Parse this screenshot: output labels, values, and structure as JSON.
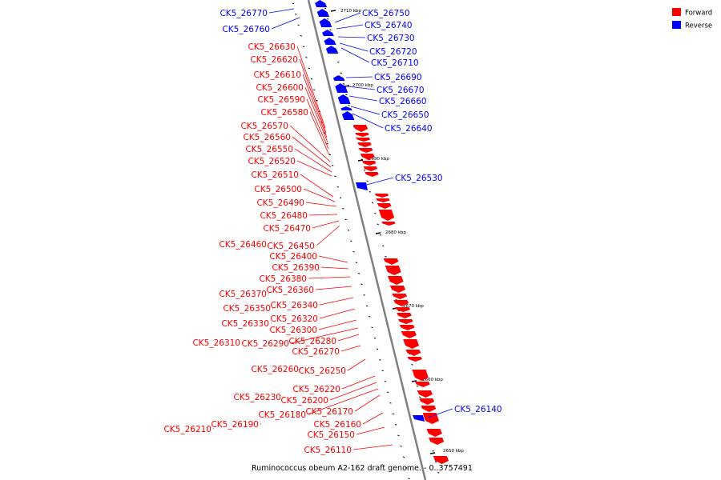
{
  "caption": "Ruminococcus obeum A2-162 draft genome. - 0..3757491",
  "colors": {
    "forward": "#ff0000",
    "reverse": "#0000ff",
    "backbone": "#808080",
    "tick": "#000000"
  },
  "legend": [
    {
      "label": "Forward",
      "strand": "forward"
    },
    {
      "label": "Reverse",
      "strand": "reverse"
    }
  ],
  "ticks": [
    "2710 kbp",
    "2700 kbp",
    "2690 kbp",
    "2680 kbp",
    "2670 kbp",
    "2660 kbp",
    "2650 kbp"
  ],
  "genes": [
    {
      "label": "CK5_26770",
      "strand": "reverse"
    },
    {
      "label": "CK5_26760",
      "strand": "reverse"
    },
    {
      "label": "CK5_26750",
      "strand": "reverse"
    },
    {
      "label": "CK5_26740",
      "strand": "reverse"
    },
    {
      "label": "CK5_26730",
      "strand": "reverse"
    },
    {
      "label": "CK5_26720",
      "strand": "reverse"
    },
    {
      "label": "CK5_26710",
      "strand": "reverse"
    },
    {
      "label": "CK5_26690",
      "strand": "reverse"
    },
    {
      "label": "CK5_26670",
      "strand": "reverse"
    },
    {
      "label": "CK5_26660",
      "strand": "reverse"
    },
    {
      "label": "CK5_26650",
      "strand": "reverse"
    },
    {
      "label": "CK5_26640",
      "strand": "reverse"
    },
    {
      "label": "CK5_26530",
      "strand": "reverse"
    },
    {
      "label": "CK5_26140",
      "strand": "reverse"
    },
    {
      "label": "CK5_26630",
      "strand": "forward"
    },
    {
      "label": "CK5_26620",
      "strand": "forward"
    },
    {
      "label": "CK5_26610",
      "strand": "forward"
    },
    {
      "label": "CK5_26600",
      "strand": "forward"
    },
    {
      "label": "CK5_26590",
      "strand": "forward"
    },
    {
      "label": "CK5_26580",
      "strand": "forward"
    },
    {
      "label": "CK5_26570",
      "strand": "forward"
    },
    {
      "label": "CK5_26560",
      "strand": "forward"
    },
    {
      "label": "CK5_26550",
      "strand": "forward"
    },
    {
      "label": "CK5_26520",
      "strand": "forward"
    },
    {
      "label": "CK5_26510",
      "strand": "forward"
    },
    {
      "label": "CK5_26500",
      "strand": "forward"
    },
    {
      "label": "CK5_26490",
      "strand": "forward"
    },
    {
      "label": "CK5_26480",
      "strand": "forward"
    },
    {
      "label": "CK5_26470",
      "strand": "forward"
    },
    {
      "label": "CK5_26460",
      "strand": "forward"
    },
    {
      "label": "CK5_26450",
      "strand": "forward"
    },
    {
      "label": "CK5_26400",
      "strand": "forward"
    },
    {
      "label": "CK5_26390",
      "strand": "forward"
    },
    {
      "label": "CK5_26380",
      "strand": "forward"
    },
    {
      "label": "CK5_26370",
      "strand": "forward"
    },
    {
      "label": "CK5_26360",
      "strand": "forward"
    },
    {
      "label": "CK5_26350",
      "strand": "forward"
    },
    {
      "label": "CK5_26340",
      "strand": "forward"
    },
    {
      "label": "CK5_26330",
      "strand": "forward"
    },
    {
      "label": "CK5_26320",
      "strand": "forward"
    },
    {
      "label": "CK5_26300",
      "strand": "forward"
    },
    {
      "label": "CK5_26310",
      "strand": "forward"
    },
    {
      "label": "CK5_26290",
      "strand": "forward"
    },
    {
      "label": "CK5_26280",
      "strand": "forward"
    },
    {
      "label": "CK5_26270",
      "strand": "forward"
    },
    {
      "label": "CK5_26260",
      "strand": "forward"
    },
    {
      "label": "CK5_26250",
      "strand": "forward"
    },
    {
      "label": "CK5_26220",
      "strand": "forward"
    },
    {
      "label": "CK5_26230",
      "strand": "forward"
    },
    {
      "label": "CK5_26200",
      "strand": "forward"
    },
    {
      "label": "CK5_26180",
      "strand": "forward"
    },
    {
      "label": "CK5_26170",
      "strand": "forward"
    },
    {
      "label": "CK5_26190",
      "strand": "forward"
    },
    {
      "label": "CK5_26210",
      "strand": "forward"
    },
    {
      "label": "CK5_26160",
      "strand": "forward"
    },
    {
      "label": "CK5_26150",
      "strand": "forward"
    },
    {
      "label": "CK5_26110",
      "strand": "forward"
    }
  ]
}
